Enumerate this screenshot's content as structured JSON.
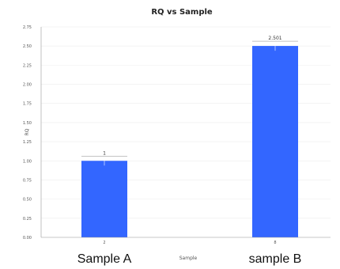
{
  "chart_data": {
    "type": "bar",
    "title": "RQ vs Sample",
    "xlabel": "Sample",
    "ylabel": "RQ",
    "ylim": [
      0,
      2.75
    ],
    "yticks": [
      "0.00",
      "0.25",
      "0.50",
      "0.75",
      "1.00",
      "1.25",
      "1.50",
      "1.75",
      "2.00",
      "2.25",
      "2.50",
      "2.75"
    ],
    "categories": [
      "Sample A",
      "sample B"
    ],
    "category_ticks": [
      "2",
      "8"
    ],
    "values": [
      1,
      2.501
    ],
    "data_labels": [
      "1",
      "2.501"
    ],
    "bar_color": "#3366ff",
    "grid": true,
    "legend": "none"
  }
}
